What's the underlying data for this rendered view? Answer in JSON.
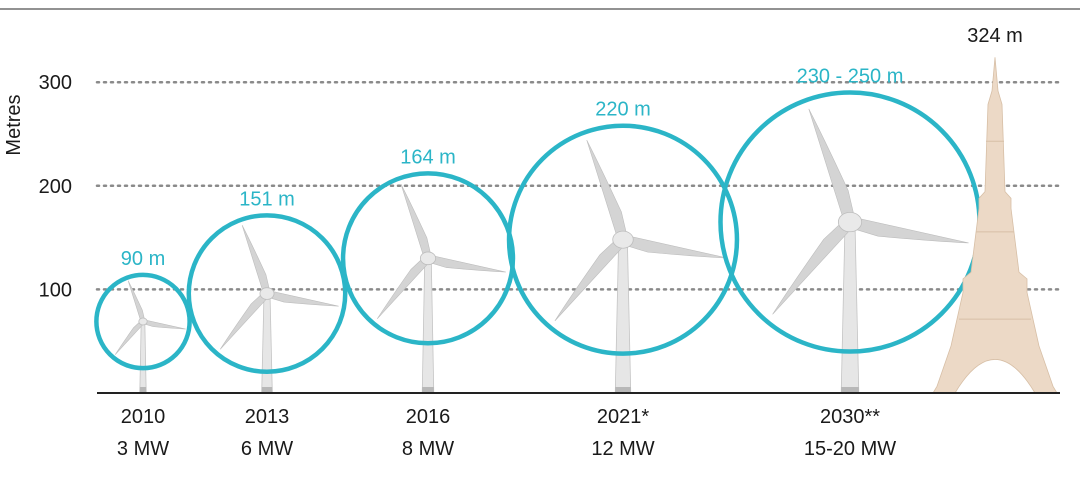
{
  "chart_data": {
    "type": "scatter",
    "title": "",
    "xlabel": "",
    "ylabel": "Metres",
    "ylim": [
      0,
      330
    ],
    "yticks": [
      100,
      200,
      300
    ],
    "grid": true,
    "colors": {
      "rotor": "#2bb5c7",
      "turbine": "#d4d4d4",
      "eiffel": "#ecd9c6"
    },
    "turbines": [
      {
        "year": "2010",
        "capacity": "3 MW",
        "rotor_diameter_label": "90 m",
        "rotor_diameter_m": 90,
        "hub_height_m": 69
      },
      {
        "year": "2013",
        "capacity": "6 MW",
        "rotor_diameter_label": "151 m",
        "rotor_diameter_m": 151,
        "hub_height_m": 96
      },
      {
        "year": "2016",
        "capacity": "8 MW",
        "rotor_diameter_label": "164 m",
        "rotor_diameter_m": 164,
        "hub_height_m": 130
      },
      {
        "year": "2021*",
        "capacity": "12 MW",
        "rotor_diameter_label": "220 m",
        "rotor_diameter_m": 220,
        "hub_height_m": 148
      },
      {
        "year": "2030**",
        "capacity": "15-20 MW",
        "rotor_diameter_label": "230 - 250 m",
        "rotor_diameter_m": 250,
        "hub_height_m": 165
      }
    ],
    "reference": {
      "label": "324 m",
      "height_m": 324,
      "icon": "eiffel-tower-icon"
    }
  }
}
